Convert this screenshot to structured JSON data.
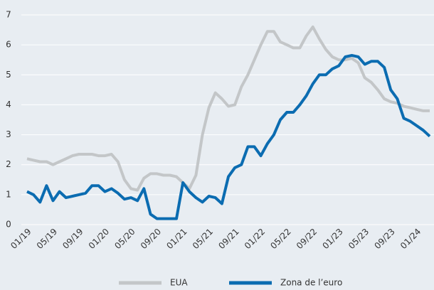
{
  "chart_data": {
    "type": "line",
    "categories": [
      "01/19",
      null,
      null,
      null,
      "05/19",
      null,
      null,
      null,
      "09/19",
      null,
      null,
      null,
      "01/20",
      null,
      null,
      null,
      "05/20",
      null,
      null,
      null,
      "09/20",
      null,
      null,
      null,
      "01/21",
      null,
      null,
      null,
      "05/21",
      null,
      null,
      null,
      "09/21",
      null,
      null,
      null,
      "01/22",
      null,
      null,
      null,
      "05/22",
      null,
      null,
      null,
      "09/22",
      null,
      null,
      null,
      "01/23",
      null,
      null,
      null,
      "05/23",
      null,
      null,
      null,
      "09/23",
      null,
      null,
      null,
      "01/24",
      null,
      null
    ],
    "series": [
      {
        "name": "EUA",
        "color": "#c3c6c8",
        "values": [
          2.2,
          2.15,
          2.1,
          2.1,
          2.0,
          2.1,
          2.2,
          2.3,
          2.35,
          2.35,
          2.35,
          2.3,
          2.3,
          2.35,
          2.1,
          1.5,
          1.2,
          1.15,
          1.55,
          1.7,
          1.7,
          1.65,
          1.65,
          1.6,
          1.4,
          1.2,
          1.65,
          3.0,
          3.9,
          4.4,
          4.2,
          3.95,
          4.0,
          4.6,
          5.0,
          5.5,
          6.0,
          6.45,
          6.45,
          6.1,
          6.0,
          5.9,
          5.9,
          6.3,
          6.6,
          6.2,
          5.85,
          5.6,
          5.5,
          5.5,
          5.55,
          5.4,
          4.9,
          4.75,
          4.5,
          4.2,
          4.1,
          4.05,
          3.95,
          3.9,
          3.85,
          3.8,
          3.8
        ]
      },
      {
        "name": "Zona de l’euro",
        "color": "#0b6cb1",
        "values": [
          1.1,
          1.0,
          0.75,
          1.3,
          0.8,
          1.1,
          0.9,
          0.95,
          1.0,
          1.05,
          1.3,
          1.3,
          1.1,
          1.2,
          1.05,
          0.85,
          0.9,
          0.8,
          1.2,
          0.35,
          0.2,
          0.2,
          0.2,
          0.2,
          1.4,
          1.1,
          0.9,
          0.75,
          0.95,
          0.9,
          0.7,
          1.6,
          1.9,
          2.0,
          2.6,
          2.6,
          2.3,
          2.7,
          3.0,
          3.5,
          3.75,
          3.75,
          4.0,
          4.3,
          4.7,
          5.0,
          5.0,
          5.2,
          5.3,
          5.6,
          5.65,
          5.6,
          5.35,
          5.45,
          5.45,
          5.25,
          4.5,
          4.2,
          3.55,
          3.45,
          3.3,
          3.15,
          2.95
        ]
      }
    ],
    "ylim": [
      0,
      7
    ],
    "yticks": [
      0,
      1,
      2,
      3,
      4,
      5,
      6,
      7
    ],
    "grid": true
  }
}
